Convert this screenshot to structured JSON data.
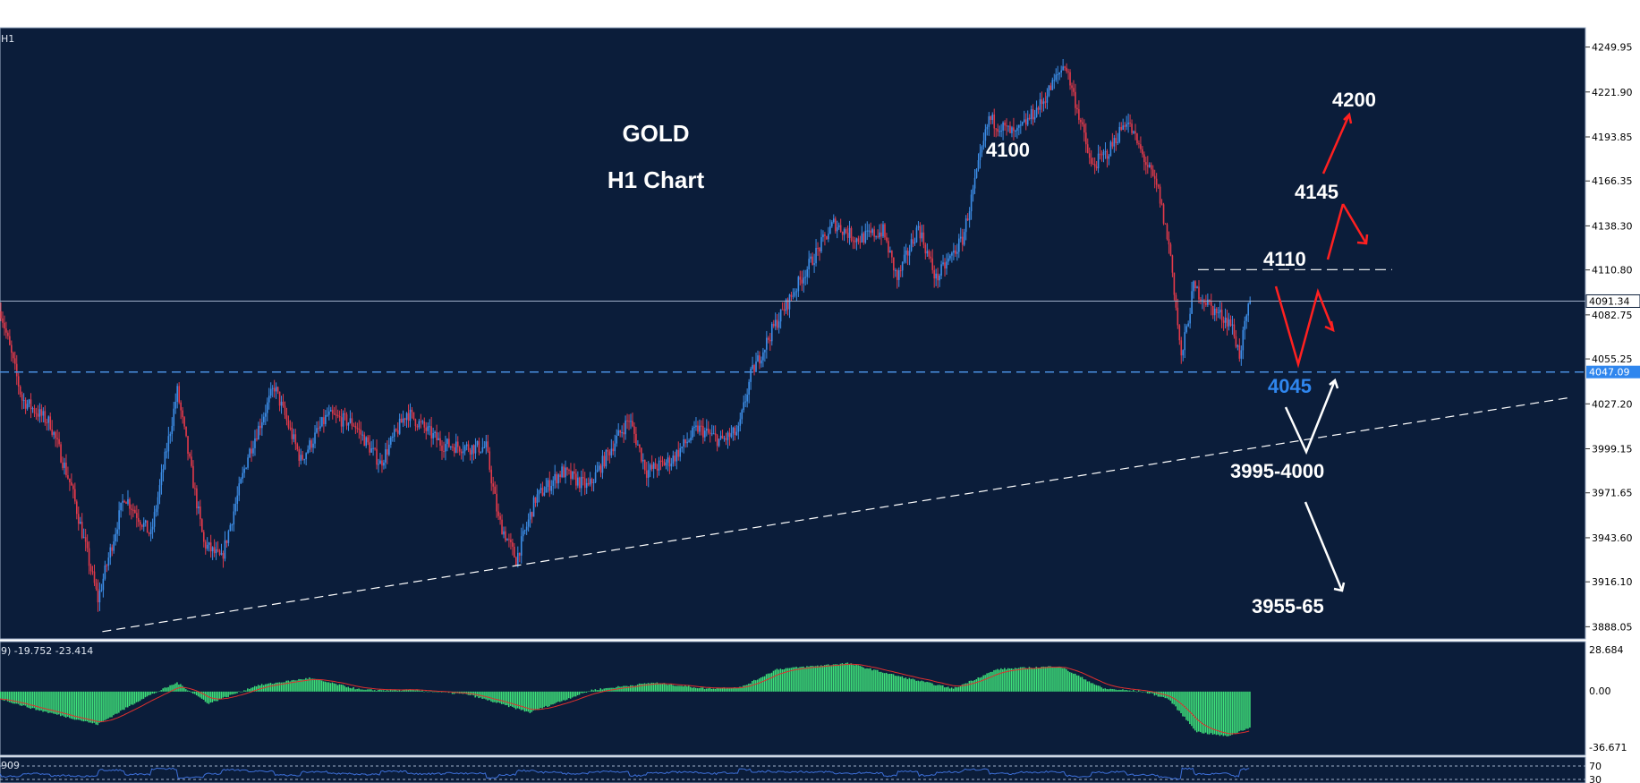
{
  "colors": {
    "background": "#0b1d3a",
    "bull": "#3d8ee8",
    "bear": "#e23a4a",
    "grid_line": "#9fb0c8",
    "support_line": "#4a8fe0",
    "macd_hist": "#3ee07a",
    "macd_signal": "#e0302e",
    "arrow_red": "#ff2020",
    "arrow_white": "#ffffff",
    "price_tag_current": "#ffffff",
    "price_tag_support": "#2f86ee"
  },
  "header": {
    "timeframe_label": "H1"
  },
  "title": {
    "line1": "GOLD",
    "line2": "H1 Chart"
  },
  "annotations": {
    "a4100": "4100",
    "a4200": "4200",
    "a4145": "4145",
    "a4110": "4110",
    "a4045": "4045",
    "a3995": "3995-4000",
    "a3955": "3955-65"
  },
  "price_tags": {
    "current": "4091.34",
    "support": "4047.09"
  },
  "macd": {
    "label": "9) -19.752 -23.414",
    "ticks": [
      "28.684",
      "0.00",
      "-36.671"
    ]
  },
  "rsi": {
    "left_label": "909",
    "ticks": [
      "70",
      "30"
    ]
  },
  "chart_data": {
    "type": "candlestick",
    "timeframe": "H1",
    "title": "GOLD",
    "subtitle": "H1 Chart",
    "y_ticks": [
      4249.95,
      4221.9,
      4193.85,
      4166.35,
      4138.3,
      4110.8,
      4082.75,
      4055.25,
      4027.2,
      3999.15,
      3971.65,
      3943.6,
      3916.1,
      3888.05
    ],
    "ylim": [
      3881,
      4262
    ],
    "current_price": 4091.34,
    "support_level": 4047.09,
    "close_path": [
      {
        "i": 0,
        "p": 4085
      },
      {
        "i": 12,
        "p": 4030
      },
      {
        "i": 28,
        "p": 4015
      },
      {
        "i": 40,
        "p": 3975
      },
      {
        "i": 55,
        "p": 3905
      },
      {
        "i": 70,
        "p": 3970
      },
      {
        "i": 85,
        "p": 3945
      },
      {
        "i": 100,
        "p": 4035
      },
      {
        "i": 115,
        "p": 3940
      },
      {
        "i": 125,
        "p": 3930
      },
      {
        "i": 140,
        "p": 3995
      },
      {
        "i": 155,
        "p": 4038
      },
      {
        "i": 170,
        "p": 3992
      },
      {
        "i": 185,
        "p": 4020
      },
      {
        "i": 200,
        "p": 4015
      },
      {
        "i": 215,
        "p": 3990
      },
      {
        "i": 230,
        "p": 4022
      },
      {
        "i": 250,
        "p": 4002
      },
      {
        "i": 265,
        "p": 4000
      },
      {
        "i": 275,
        "p": 4000
      },
      {
        "i": 282,
        "p": 3955
      },
      {
        "i": 292,
        "p": 3930
      },
      {
        "i": 303,
        "p": 3968
      },
      {
        "i": 318,
        "p": 3985
      },
      {
        "i": 333,
        "p": 3975
      },
      {
        "i": 346,
        "p": 4000
      },
      {
        "i": 356,
        "p": 4018
      },
      {
        "i": 366,
        "p": 3985
      },
      {
        "i": 380,
        "p": 3992
      },
      {
        "i": 395,
        "p": 4012
      },
      {
        "i": 408,
        "p": 4004
      },
      {
        "i": 418,
        "p": 4010
      },
      {
        "i": 425,
        "p": 4045
      },
      {
        "i": 438,
        "p": 4075
      },
      {
        "i": 456,
        "p": 4110
      },
      {
        "i": 472,
        "p": 4140
      },
      {
        "i": 485,
        "p": 4130
      },
      {
        "i": 500,
        "p": 4135
      },
      {
        "i": 508,
        "p": 4105
      },
      {
        "i": 520,
        "p": 4138
      },
      {
        "i": 530,
        "p": 4105
      },
      {
        "i": 545,
        "p": 4130
      },
      {
        "i": 553,
        "p": 4170
      },
      {
        "i": 560,
        "p": 4205
      },
      {
        "i": 575,
        "p": 4195
      },
      {
        "i": 590,
        "p": 4215
      },
      {
        "i": 603,
        "p": 4240
      },
      {
        "i": 610,
        "p": 4212
      },
      {
        "i": 618,
        "p": 4175
      },
      {
        "i": 628,
        "p": 4185
      },
      {
        "i": 638,
        "p": 4205
      },
      {
        "i": 648,
        "p": 4180
      },
      {
        "i": 656,
        "p": 4160
      },
      {
        "i": 663,
        "p": 4120
      },
      {
        "i": 669,
        "p": 4055
      },
      {
        "i": 676,
        "p": 4100
      },
      {
        "i": 688,
        "p": 4085
      },
      {
        "i": 697,
        "p": 4078
      },
      {
        "i": 702,
        "p": 4058
      },
      {
        "i": 708,
        "p": 4091.34
      }
    ],
    "macd_histogram_path": [
      {
        "i": 0,
        "v": -5
      },
      {
        "i": 20,
        "v": -12
      },
      {
        "i": 55,
        "v": -22
      },
      {
        "i": 80,
        "v": -5
      },
      {
        "i": 100,
        "v": 6
      },
      {
        "i": 118,
        "v": -8
      },
      {
        "i": 145,
        "v": 4
      },
      {
        "i": 175,
        "v": 9
      },
      {
        "i": 205,
        "v": 1
      },
      {
        "i": 235,
        "v": 1
      },
      {
        "i": 265,
        "v": -2
      },
      {
        "i": 300,
        "v": -14
      },
      {
        "i": 335,
        "v": 1
      },
      {
        "i": 370,
        "v": 6
      },
      {
        "i": 400,
        "v": 2
      },
      {
        "i": 420,
        "v": 3
      },
      {
        "i": 440,
        "v": 15
      },
      {
        "i": 480,
        "v": 19
      },
      {
        "i": 510,
        "v": 10
      },
      {
        "i": 540,
        "v": 2
      },
      {
        "i": 565,
        "v": 15
      },
      {
        "i": 600,
        "v": 17
      },
      {
        "i": 625,
        "v": 2
      },
      {
        "i": 648,
        "v": 0
      },
      {
        "i": 662,
        "v": -5
      },
      {
        "i": 678,
        "v": -27
      },
      {
        "i": 695,
        "v": -30
      },
      {
        "i": 708,
        "v": -24
      }
    ],
    "macd_ylim": [
      -36.671,
      28.684
    ],
    "trendlines": [
      {
        "name": "ascending support",
        "from": {
          "i": 58,
          "p": 3885
        },
        "to": {
          "i": 889,
          "p": 4031
        }
      },
      {
        "name": "resistance 4110",
        "from": {
          "i": 679,
          "p": 4111
        },
        "to": {
          "i": 789,
          "p": 4111
        }
      }
    ]
  }
}
